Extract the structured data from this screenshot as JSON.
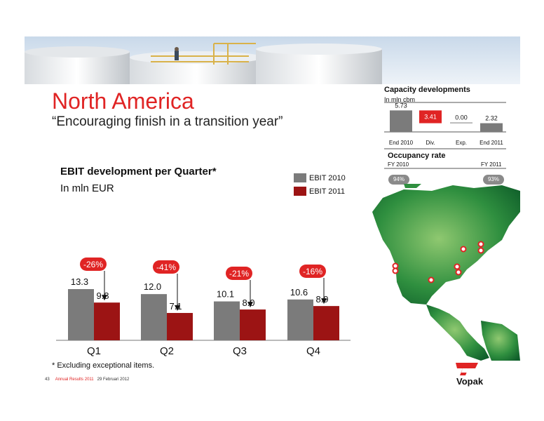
{
  "slide": {
    "title": "North America",
    "subtitle": "“Encouraging finish in a transition year”",
    "footnote": "*  Excluding exceptional items.",
    "footer_page": "43",
    "footer_title": "Annual Results 2011",
    "footer_date": "29 Februari 2012",
    "logo_text": "Vopak"
  },
  "chart_data": [
    {
      "type": "bar",
      "title": "EBIT development per Quarter*",
      "ylabel": "In mln EUR",
      "categories": [
        "Q1",
        "Q2",
        "Q3",
        "Q4"
      ],
      "series": [
        {
          "name": "EBIT 2010",
          "color": "#7b7b7b",
          "values": [
            13.3,
            12.0,
            10.1,
            10.6
          ],
          "labels": [
            "13.3",
            "12.0",
            "10.1",
            "10.6"
          ]
        },
        {
          "name": "EBIT 2011",
          "color": "#9c1414",
          "values": [
            9.8,
            7.1,
            8.0,
            8.9
          ],
          "labels": [
            "9.8",
            "7.1",
            "8.0",
            "8.9"
          ]
        }
      ],
      "annotations": [
        "-26%",
        "-41%",
        "-21%",
        "-16%"
      ],
      "ylim": [
        0,
        13.3
      ]
    },
    {
      "type": "bar",
      "title": "Capacity developments",
      "ylabel": "In mln cbm",
      "categories": [
        "End 2010",
        "Div.",
        "Exp.",
        "End 2011"
      ],
      "values": [
        5.73,
        3.41,
        0.0,
        2.32
      ],
      "labels": [
        "5.73",
        "3.41",
        "0.00",
        "2.32"
      ],
      "colors": [
        "#7b7b7b",
        "#e02424",
        "#7b7b7b",
        "#7b7b7b"
      ]
    }
  ],
  "occupancy": {
    "title": "Occupancy rate",
    "left_label": "FY 2010",
    "right_label": "FY 2011",
    "left_value": "94%",
    "right_value": "93%"
  },
  "colors": {
    "accent_red": "#e02424",
    "dark_red": "#9c1414",
    "grey": "#7b7b7b",
    "map_green": "#2f8f3f"
  }
}
